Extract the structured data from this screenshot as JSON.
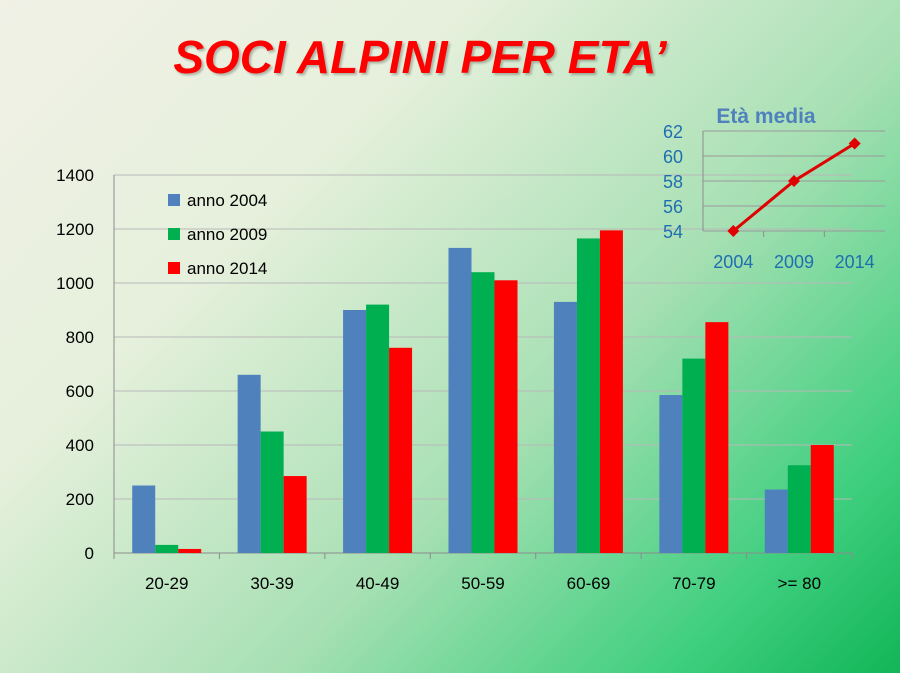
{
  "title": "SOCI ALPINI PER ETA’",
  "colors": {
    "title": "#ff0000",
    "s2004": "#4f81bd",
    "s2009": "#00b050",
    "s2014": "#ff0000",
    "inset_line": "#e00000",
    "inset_text": "#4f81bd",
    "inset_axis_text": "#1f6fb0"
  },
  "chart_data": [
    {
      "type": "bar",
      "title": "SOCI ALPINI PER ETA’",
      "categories": [
        "20-29",
        "30-39",
        "40-49",
        "50-59",
        "60-69",
        "70-79",
        ">= 80"
      ],
      "series": [
        {
          "name": "anno 2004",
          "color": "#4f81bd",
          "values": [
            250,
            660,
            900,
            1130,
            930,
            585,
            235
          ]
        },
        {
          "name": "anno 2009",
          "color": "#00b050",
          "values": [
            30,
            450,
            920,
            1040,
            1165,
            720,
            325
          ]
        },
        {
          "name": "anno 2014",
          "color": "#ff0000",
          "values": [
            15,
            285,
            760,
            1010,
            1195,
            855,
            400
          ]
        }
      ],
      "ylim": [
        0,
        1400
      ],
      "yticks": [
        0,
        200,
        400,
        600,
        800,
        1000,
        1200,
        1400
      ],
      "grid": true,
      "legend": "top-left"
    },
    {
      "type": "line",
      "title": "Età media",
      "x": [
        "2004",
        "2009",
        "2014"
      ],
      "values": [
        54,
        58,
        61
      ],
      "ylim": [
        54,
        62
      ],
      "yticks": [
        54,
        56,
        58,
        60,
        62
      ],
      "grid": true,
      "marker": "diamond"
    }
  ]
}
